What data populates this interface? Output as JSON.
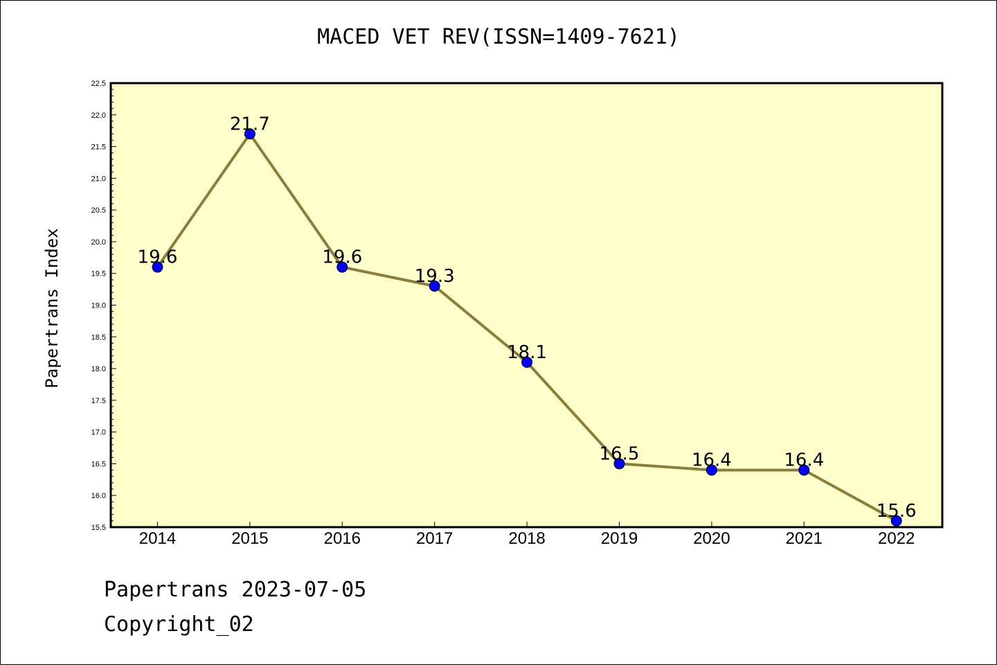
{
  "title": "MACED VET REV(ISSN=1409-7621)",
  "footer": {
    "line1": "Papertrans 2023-07-05",
    "line2": "Copyright_02"
  },
  "colors": {
    "plot_background": "#ffffcc",
    "line": "#8b7d3a",
    "marker": "#0000ff"
  },
  "chart_data": {
    "type": "line",
    "title": "MACED VET REV(ISSN=1409-7621)",
    "xlabel": "",
    "ylabel": "Papertrans Index",
    "categories": [
      "2014",
      "2015",
      "2016",
      "2017",
      "2018",
      "2019",
      "2020",
      "2021",
      "2022"
    ],
    "values": [
      19.6,
      21.7,
      19.6,
      19.3,
      18.1,
      16.5,
      16.4,
      16.4,
      15.6
    ],
    "value_labels": [
      "19.6",
      "21.7",
      "19.6",
      "19.3",
      "18.1",
      "16.5",
      "16.4",
      "16.4",
      "15.6"
    ],
    "ylim": [
      15.5,
      22.5
    ],
    "yticks": [
      "15.5",
      "16.0",
      "16.5",
      "17.0",
      "17.5",
      "18.0",
      "18.5",
      "19.0",
      "19.5",
      "20.0",
      "20.5",
      "21.0",
      "21.5",
      "22.0",
      "22.5"
    ],
    "grid": false,
    "legend": "none"
  }
}
